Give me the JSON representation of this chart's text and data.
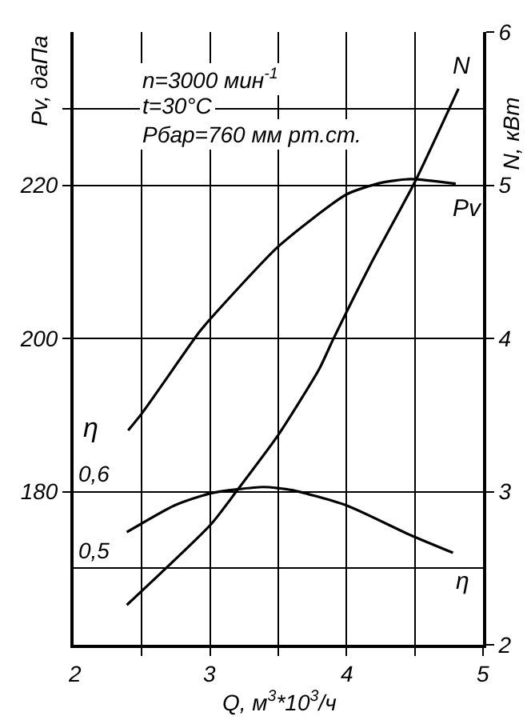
{
  "chart_data": {
    "type": "line",
    "xlabel": "Q, м$^{3}$*10$^{3}$/ч",
    "ylabel": "Pv, даПа",
    "y2label": "N, кВт",
    "y3label": "η",
    "annotations": [
      "n=3000 мин$^{-1}$",
      "t=30°C",
      "Pбар=760 мм рт.ст."
    ],
    "xlim": [
      2,
      5
    ],
    "xticks": [
      2,
      {
        "value": 2.5,
        "label": null
      },
      3,
      {
        "value": 3.5,
        "label": null
      },
      4,
      {
        "value": 4.5,
        "label": null
      },
      5
    ],
    "ylim": [
      160,
      240
    ],
    "yticks": [
      180,
      200,
      220,
      {
        "value": 230,
        "label": null
      }
    ],
    "y2lim": [
      2,
      6
    ],
    "y2ticks": [
      2,
      3,
      4,
      5,
      6
    ],
    "y3lim": [
      0.4,
      1.2
    ],
    "y3ticks": [
      {
        "value": 0.5,
        "label": "0,5"
      },
      {
        "value": 0.6,
        "label": "0,6"
      }
    ],
    "grid": true,
    "legend": false,
    "marker": "none",
    "line_style": "solid",
    "series": [
      {
        "name": "Pv",
        "color": "#000000",
        "x": [
          2.4,
          2.5,
          2.92,
          3.0,
          3.5,
          4.0,
          4.25,
          4.47,
          4.8
        ],
        "values": [
          188,
          190.2,
          200.8,
          202.5,
          212,
          218.8,
          220.3,
          220.8,
          220.2
        ]
      },
      {
        "name": "N",
        "color": "#000000",
        "axis": "y2",
        "x": [
          2.39,
          3.01,
          3.2,
          3.5,
          3.8,
          3.9,
          4.18,
          4.5,
          4.82
        ],
        "values": [
          2.26,
          2.79,
          3.01,
          3.37,
          3.8,
          3.99,
          4.49,
          5.02,
          5.63
        ]
      },
      {
        "name": "η",
        "color": "#000000",
        "axis": "y3",
        "x": [
          2.39,
          2.74,
          3.01,
          3.39,
          3.6,
          4.0,
          4.47,
          4.78
        ],
        "values": [
          0.547,
          0.582,
          0.598,
          0.606,
          0.602,
          0.582,
          0.543,
          0.52
        ]
      }
    ]
  }
}
